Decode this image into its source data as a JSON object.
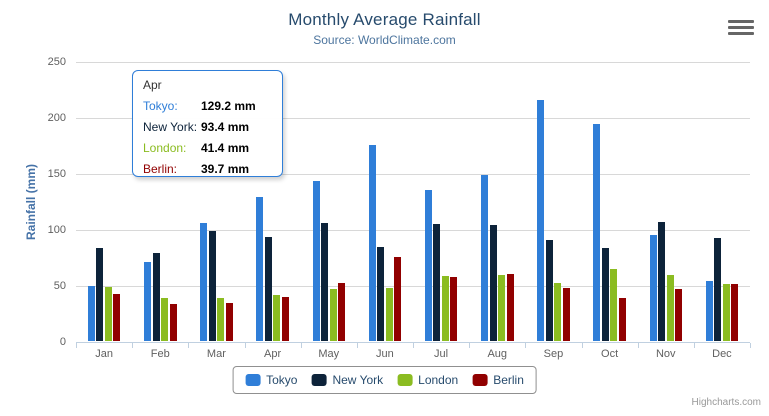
{
  "title": "Monthly Average Rainfall",
  "subtitle": "Source: WorldClimate.com",
  "credit": "Highcharts.com",
  "menu_icon": "hamburger-menu-icon",
  "yaxis": {
    "title": "Rainfall (mm)",
    "ticks": [
      0,
      50,
      100,
      150,
      200,
      250
    ]
  },
  "tooltip": {
    "header": "Apr",
    "border_color": "#2f7ed8",
    "rows": [
      {
        "label": "Tokyo:",
        "value": "129.2 mm",
        "color": "#2f7ed8"
      },
      {
        "label": "New York:",
        "value": "93.4 mm",
        "color": "#0d233a"
      },
      {
        "label": "London:",
        "value": "41.4 mm",
        "color": "#8bbc21"
      },
      {
        "label": "Berlin:",
        "value": "39.7 mm",
        "color": "#910000"
      }
    ]
  },
  "legend": {
    "items": [
      {
        "label": "Tokyo",
        "color": "#2f7ed8"
      },
      {
        "label": "New York",
        "color": "#0d233a"
      },
      {
        "label": "London",
        "color": "#8bbc21"
      },
      {
        "label": "Berlin",
        "color": "#910000"
      }
    ]
  },
  "chart_data": {
    "type": "bar",
    "title": "Monthly Average Rainfall",
    "subtitle": "Source: WorldClimate.com",
    "categories": [
      "Jan",
      "Feb",
      "Mar",
      "Apr",
      "May",
      "Jun",
      "Jul",
      "Aug",
      "Sep",
      "Oct",
      "Nov",
      "Dec"
    ],
    "series": [
      {
        "name": "Tokyo",
        "color": "#2f7ed8",
        "values": [
          49.9,
          71.5,
          106.4,
          129.2,
          144.0,
          176.0,
          135.6,
          148.5,
          216.4,
          194.1,
          95.6,
          54.4
        ]
      },
      {
        "name": "New York",
        "color": "#0d233a",
        "values": [
          83.6,
          78.8,
          98.5,
          93.4,
          106.0,
          84.5,
          105.0,
          104.3,
          91.2,
          83.5,
          106.6,
          92.3
        ]
      },
      {
        "name": "London",
        "color": "#8bbc21",
        "values": [
          48.9,
          38.8,
          39.3,
          41.4,
          47.0,
          48.3,
          59.0,
          59.6,
          52.4,
          65.2,
          59.3,
          51.2
        ]
      },
      {
        "name": "Berlin",
        "color": "#910000",
        "values": [
          42.4,
          33.2,
          34.5,
          39.7,
          52.6,
          75.5,
          57.4,
          60.4,
          47.6,
          39.1,
          46.8,
          51.1
        ]
      }
    ],
    "xlabel": "",
    "ylabel": "Rainfall (mm)",
    "ylim": [
      0,
      250
    ],
    "ytick_step": 50,
    "value_suffix": " mm",
    "grid": true,
    "legend_position": "bottom",
    "tooltip_category": "Apr"
  }
}
